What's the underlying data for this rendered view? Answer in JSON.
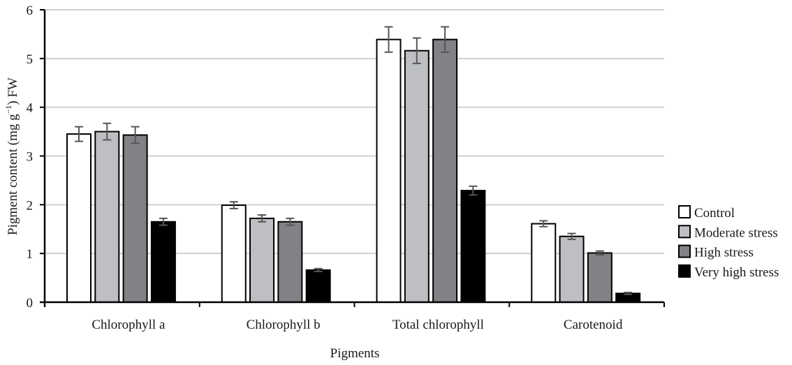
{
  "chart_data": {
    "type": "bar",
    "title": "",
    "xlabel": "Pigments",
    "ylabel": "Pigment content (mg g⁻¹) FW",
    "ylabel_parts": {
      "pre": "Pigment content (mg g",
      "sup": "−1",
      "post": ") FW"
    },
    "ylim": [
      0,
      6
    ],
    "yticks": [
      0,
      1,
      2,
      3,
      4,
      5,
      6
    ],
    "grid": true,
    "legend_position": "right",
    "categories": [
      "Chlorophyll a",
      "Chlorophyll b",
      "Total chlorophyll",
      "Carotenoid"
    ],
    "series": [
      {
        "name": "Control",
        "color": "#ffffff",
        "values": [
          3.45,
          1.99,
          5.39,
          1.61
        ],
        "errors": [
          0.15,
          0.07,
          0.26,
          0.06
        ]
      },
      {
        "name": "Moderate stress",
        "color": "#bdbfc2",
        "values": [
          3.5,
          1.72,
          5.16,
          1.35
        ],
        "errors": [
          0.17,
          0.07,
          0.26,
          0.06
        ]
      },
      {
        "name": "High stress",
        "color": "#808285",
        "values": [
          3.43,
          1.65,
          5.39,
          1.01
        ],
        "errors": [
          0.17,
          0.07,
          0.26,
          0.04
        ]
      },
      {
        "name": "Very high stress",
        "color": "#000000",
        "values": [
          1.65,
          0.66,
          2.29,
          0.18
        ],
        "errors": [
          0.07,
          0.03,
          0.09,
          0.02
        ]
      }
    ]
  }
}
